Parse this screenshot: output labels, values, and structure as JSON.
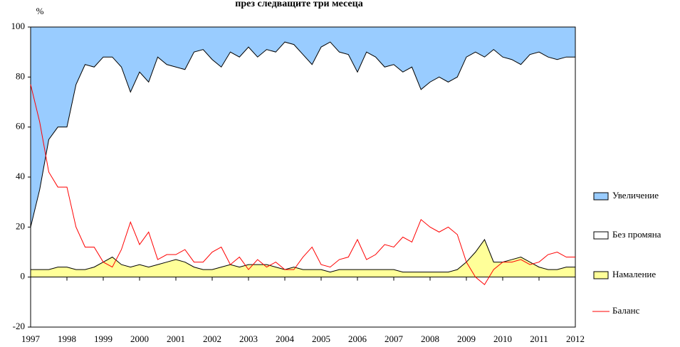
{
  "chart_data": {
    "type": "area",
    "title": "през следващите три месеца",
    "ylabel": "%",
    "x": [
      1997,
      1997.25,
      1997.5,
      1997.75,
      1998,
      1998.25,
      1998.5,
      1998.75,
      1999,
      1999.25,
      1999.5,
      1999.75,
      2000,
      2000.25,
      2000.5,
      2000.75,
      2001,
      2001.25,
      2001.5,
      2001.75,
      2002,
      2002.25,
      2002.5,
      2002.75,
      2003,
      2003.25,
      2003.5,
      2003.75,
      2004,
      2004.25,
      2004.5,
      2004.75,
      2005,
      2005.25,
      2005.5,
      2005.75,
      2006,
      2006.25,
      2006.5,
      2006.75,
      2007,
      2007.25,
      2007.5,
      2007.75,
      2008,
      2008.25,
      2008.5,
      2008.75,
      2009,
      2009.25,
      2009.5,
      2009.75,
      2010,
      2010.25,
      2010.5,
      2010.75,
      2011,
      2011.25,
      2011.5,
      2011.75,
      2012
    ],
    "xlim": [
      1997,
      2012
    ],
    "xticks": [
      1997,
      1998,
      1999,
      2000,
      2001,
      2002,
      2003,
      2004,
      2005,
      2006,
      2007,
      2008,
      2009,
      2010,
      2011,
      2012
    ],
    "ylim": [
      -20,
      100
    ],
    "yticks": [
      -20,
      0,
      20,
      40,
      60,
      80,
      100
    ],
    "legend": "right",
    "series": [
      {
        "name": "Увеличение",
        "color": "#99ccff",
        "stacked": true,
        "order": 3,
        "values": [
          80,
          65,
          45,
          40,
          40,
          23,
          15,
          16,
          12,
          12,
          16,
          26,
          18,
          22,
          12,
          15,
          16,
          17,
          10,
          9,
          13,
          16,
          10,
          12,
          8,
          12,
          9,
          10,
          6,
          7,
          11,
          15,
          8,
          6,
          10,
          11,
          18,
          10,
          12,
          16,
          15,
          18,
          16,
          25,
          22,
          20,
          22,
          20,
          12,
          10,
          12,
          9,
          12,
          13,
          15,
          11,
          10,
          12,
          13,
          12,
          12
        ]
      },
      {
        "name": "Без промяна",
        "color": "#ffffff",
        "stacked": true,
        "order": 2,
        "values": [
          17,
          32,
          52,
          56,
          56,
          74,
          82,
          80,
          82,
          80,
          79,
          70,
          77,
          74,
          83,
          79,
          77,
          77,
          86,
          88,
          84,
          80,
          85,
          84,
          87,
          83,
          86,
          86,
          91,
          89,
          86,
          82,
          89,
          92,
          87,
          86,
          79,
          87,
          85,
          81,
          82,
          80,
          82,
          73,
          76,
          78,
          76,
          77,
          82,
          80,
          73,
          85,
          82,
          80,
          77,
          83,
          86,
          85,
          84,
          84,
          84
        ]
      },
      {
        "name": "Намаление",
        "color": "#ffff99",
        "stacked": true,
        "order": 1,
        "values": [
          3,
          3,
          3,
          4,
          4,
          3,
          3,
          4,
          6,
          8,
          5,
          4,
          5,
          4,
          5,
          6,
          7,
          6,
          4,
          3,
          3,
          4,
          5,
          4,
          5,
          5,
          5,
          4,
          3,
          4,
          3,
          3,
          3,
          2,
          3,
          3,
          3,
          3,
          3,
          3,
          3,
          2,
          2,
          2,
          2,
          2,
          2,
          3,
          6,
          10,
          15,
          6,
          6,
          7,
          8,
          6,
          4,
          3,
          3,
          4,
          4
        ]
      },
      {
        "name": "Баланс",
        "color": "#ff0000",
        "type": "line",
        "values": [
          77,
          62,
          42,
          36,
          36,
          20,
          12,
          12,
          6,
          4,
          11,
          22,
          13,
          18,
          7,
          9,
          9,
          11,
          6,
          6,
          10,
          12,
          5,
          8,
          3,
          7,
          4,
          6,
          3,
          3,
          8,
          12,
          5,
          4,
          7,
          8,
          15,
          7,
          9,
          13,
          12,
          16,
          14,
          23,
          20,
          18,
          20,
          17,
          6,
          0,
          -3,
          3,
          6,
          6,
          7,
          5,
          6,
          9,
          10,
          8,
          8
        ]
      }
    ]
  }
}
